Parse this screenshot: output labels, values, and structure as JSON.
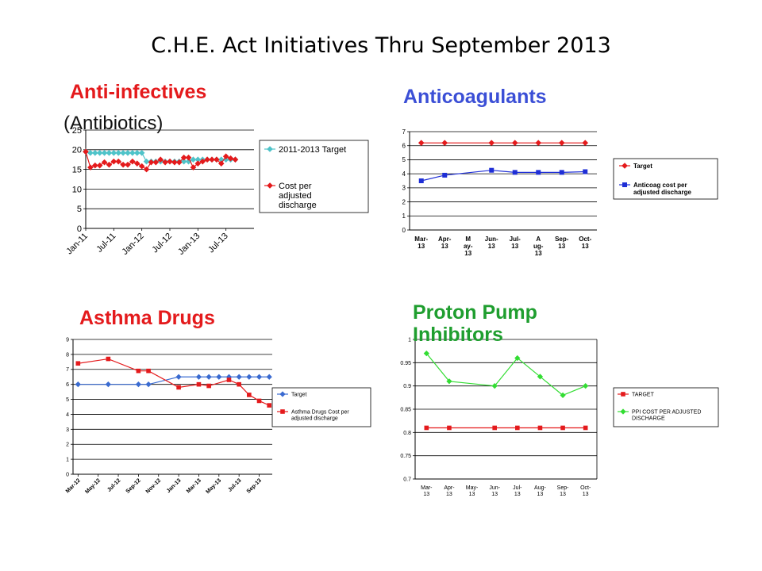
{
  "slide": {
    "title": "C.H.E. Act Initiatives Thru September 2013"
  },
  "colors": {
    "anti_infectives_title": "#e41a1c",
    "anticoag_title": "#3b4fd6",
    "asthma_title": "#e41a1c",
    "ppi_title": "#1f9e2f"
  },
  "chart_data": [
    {
      "id": "anti_infectives",
      "type": "line",
      "title": "Anti-infectives",
      "subtitle": "(Antibiotics)",
      "ylim": [
        0,
        25
      ],
      "yticks": [
        "0",
        "5",
        "10",
        "15",
        "20",
        "25"
      ],
      "x_tick_labels": [
        "Jan-11",
        "Jul-11",
        "Jan-12",
        "Jul-12",
        "Jan-13",
        "Jul-13"
      ],
      "x_ticks_at": [
        0,
        6,
        12,
        18,
        24,
        30
      ],
      "xlim": [
        0,
        36
      ],
      "grid": true,
      "legend": "right",
      "series": [
        {
          "name": "2011-2013 Target",
          "color": "#4fc3c9",
          "marker": "diamond",
          "x": [
            0,
            1,
            2,
            3,
            4,
            5,
            6,
            7,
            8,
            9,
            10,
            11,
            12,
            13,
            14,
            15,
            16,
            17,
            18,
            19,
            20,
            21,
            22,
            23,
            24,
            25,
            26,
            27,
            28,
            29,
            30,
            31,
            32
          ],
          "values": [
            19.5,
            19.2,
            19.2,
            19.2,
            19.2,
            19.2,
            19.2,
            19.2,
            19.2,
            19.2,
            19.2,
            19.2,
            19.2,
            17,
            17,
            17,
            17,
            17,
            17,
            17,
            17,
            17,
            17,
            17.5,
            17.5,
            17.5,
            17.5,
            17.5,
            17.5,
            17.5,
            17.5,
            17.5,
            17.5
          ]
        },
        {
          "name": "Cost per adjusted discharge",
          "color": "#e41a1c",
          "marker": "diamond",
          "x": [
            0,
            1,
            2,
            3,
            4,
            5,
            6,
            7,
            8,
            9,
            10,
            11,
            12,
            13,
            14,
            15,
            16,
            17,
            18,
            19,
            20,
            21,
            22,
            23,
            24,
            25,
            26,
            27,
            28,
            29,
            30,
            31,
            32
          ],
          "values": [
            19.5,
            15.5,
            16,
            16,
            16.8,
            16.2,
            17,
            17,
            16.2,
            16.2,
            17,
            16.5,
            15.8,
            15,
            16.8,
            16.8,
            17.5,
            16.8,
            17,
            16.8,
            16.8,
            18,
            18,
            15.5,
            16.5,
            17,
            17.5,
            17.5,
            17.5,
            16.5,
            18.3,
            17.8,
            17.5
          ]
        }
      ]
    },
    {
      "id": "anticoagulants",
      "type": "line",
      "title": "Anticoagulants",
      "ylim": [
        0,
        7
      ],
      "yticks": [
        "0",
        "1",
        "2",
        "3",
        "4",
        "5",
        "6",
        "7"
      ],
      "categories": [
        [
          "Mar-",
          "13"
        ],
        [
          "Apr-",
          "13"
        ],
        [
          "M",
          "ay-",
          "13"
        ],
        [
          "Jun-",
          "13"
        ],
        [
          "Jul-",
          "13"
        ],
        [
          "A",
          "ug-",
          "13"
        ],
        [
          "Sep-",
          "13"
        ],
        [
          "Oct-",
          "13"
        ]
      ],
      "grid": true,
      "legend": "right",
      "series": [
        {
          "name": "Target",
          "color": "#e41a1c",
          "marker": "diamond",
          "x": [
            0,
            1,
            3,
            4,
            5,
            6,
            7
          ],
          "values": [
            6.2,
            6.2,
            6.2,
            6.2,
            6.2,
            6.2,
            6.2
          ]
        },
        {
          "name": "Anticoag cost per adjusted discharge",
          "legend_lines": [
            "Anticoag cost per",
            "adjusted discharge"
          ],
          "color": "#1f2fd6",
          "marker": "square",
          "x": [
            0,
            1,
            3,
            4,
            5,
            6,
            7
          ],
          "values": [
            3.5,
            3.9,
            4.25,
            4.1,
            4.1,
            4.1,
            4.15
          ]
        }
      ]
    },
    {
      "id": "asthma",
      "type": "line",
      "title": "Asthma Drugs",
      "ylim": [
        0,
        9
      ],
      "yticks": [
        "0",
        "1",
        "2",
        "3",
        "4",
        "5",
        "6",
        "7",
        "8",
        "9"
      ],
      "x_tick_labels": [
        "Mar-12",
        "May-12",
        "Jul-12",
        "Sep-12",
        "Nov-12",
        "Jan-13",
        "Mar-13",
        "May-13",
        "Jul-13",
        "Sep-13"
      ],
      "x_ticks_at": [
        0,
        2,
        4,
        6,
        8,
        10,
        12,
        14,
        16,
        18
      ],
      "xlim": [
        -0.5,
        19.3
      ],
      "grid": true,
      "legend": "right",
      "series": [
        {
          "name": "Target",
          "color": "#3a6bd1",
          "marker": "diamond",
          "x": [
            0,
            3,
            6,
            7,
            10,
            12,
            13,
            14,
            15,
            16,
            17,
            18,
            19
          ],
          "values": [
            6,
            6,
            6,
            6,
            6.5,
            6.5,
            6.5,
            6.5,
            6.5,
            6.5,
            6.5,
            6.5,
            6.5
          ]
        },
        {
          "name": "Asthma Drugs Cost per adjusted discharge",
          "legend_lines": [
            "Asthma Drugs Cost per",
            "adjusted discharge"
          ],
          "color": "#e41a1c",
          "marker": "square",
          "x": [
            0,
            3,
            6,
            7,
            10,
            12,
            13,
            15,
            16,
            17,
            18,
            19
          ],
          "values": [
            7.4,
            7.7,
            6.9,
            6.9,
            5.8,
            6,
            5.9,
            6.3,
            6,
            5.3,
            4.9,
            4.6
          ]
        }
      ]
    },
    {
      "id": "ppi",
      "type": "line",
      "title": "Proton Pump Inhibitors",
      "title_lines": [
        "Proton Pump",
        "Inhibitors"
      ],
      "ylim": [
        0.7,
        1
      ],
      "yticks": [
        "0.7",
        "0.75",
        "0.8",
        "0.85",
        "0.9",
        "0.95",
        "1"
      ],
      "categories": [
        [
          "Mar-",
          "13"
        ],
        [
          "Apr-",
          "13"
        ],
        [
          "May-",
          "13"
        ],
        [
          "Jun-",
          "13"
        ],
        [
          "Jul-",
          "13"
        ],
        [
          "Aug-",
          "13"
        ],
        [
          "Sep-",
          "13"
        ],
        [
          "Oct-",
          "13"
        ]
      ],
      "grid": true,
      "legend": "right",
      "series": [
        {
          "name": "TARGET",
          "color": "#e41a1c",
          "marker": "square",
          "x": [
            0,
            1,
            3,
            4,
            5,
            6,
            7
          ],
          "values": [
            0.81,
            0.81,
            0.81,
            0.81,
            0.81,
            0.81,
            0.81
          ]
        },
        {
          "name": "PPI COST PER ADJUSTED DISCHARGE",
          "legend_lines": [
            "PPI COST PER ADJUSTED",
            "DISCHARGE"
          ],
          "color": "#33dd33",
          "marker": "diamond",
          "x": [
            0,
            1,
            3,
            4,
            5,
            6,
            7
          ],
          "values": [
            0.97,
            0.91,
            0.9,
            0.96,
            0.92,
            0.88,
            0.9
          ]
        }
      ]
    }
  ]
}
